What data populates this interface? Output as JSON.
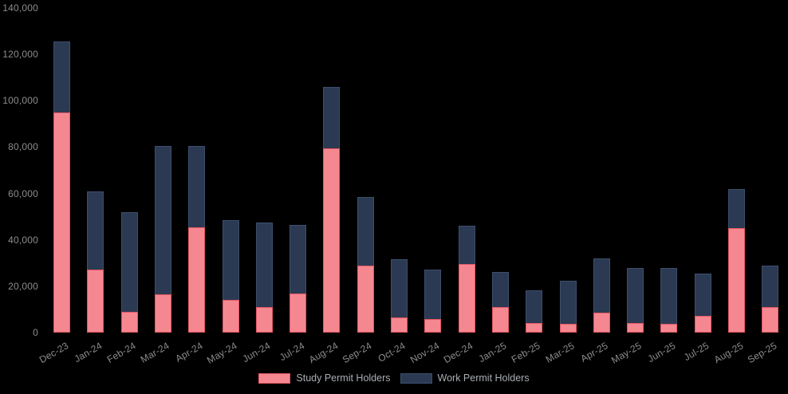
{
  "chart_data": {
    "type": "bar",
    "stacked": true,
    "title": "",
    "xlabel": "",
    "ylabel": "",
    "categories": [
      "Dec-23",
      "Jan-24",
      "Feb-24",
      "Mar-24",
      "Apr-24",
      "May-24",
      "Jun-24",
      "Jul-24",
      "Aug-24",
      "Sep-24",
      "Oct-24",
      "Nov-24",
      "Dec-24",
      "Jan-25",
      "Feb-25",
      "Mar-25",
      "Apr-25",
      "May-25",
      "Jun-25",
      "Jul-25",
      "Aug-25",
      "Sep-25"
    ],
    "series": [
      {
        "name": "Study Permit Holders",
        "fill_color": "#F58790",
        "border_color": "#E25663",
        "values": [
          95000,
          27000,
          9000,
          16500,
          45500,
          14000,
          11000,
          17000,
          79500,
          29000,
          6500,
          6000,
          29700,
          11000,
          4000,
          3700,
          8500,
          4200,
          3900,
          7100,
          45000,
          11000
        ]
      },
      {
        "name": "Work Permit Holders",
        "fill_color": "#2B3A52",
        "border_color": "#3C4E6B",
        "values": [
          30500,
          34000,
          43000,
          64000,
          35000,
          34500,
          36500,
          29500,
          26500,
          29500,
          25000,
          21200,
          16500,
          15000,
          14300,
          18500,
          23500,
          23700,
          24100,
          18300,
          17000,
          17800
        ]
      }
    ],
    "ylim": [
      0,
      140000
    ],
    "ytick_step": 20000,
    "ytick_labels": [
      "0",
      "20,000",
      "40,000",
      "60,000",
      "80,000",
      "100,000",
      "120,000",
      "140,000"
    ],
    "grid": false,
    "legend_position": "bottom",
    "x_label_rotation_deg": -30
  },
  "colors": {
    "background": "#000000",
    "tick_text": "#8C8C8C",
    "legend_text": "#A8ADB3"
  }
}
